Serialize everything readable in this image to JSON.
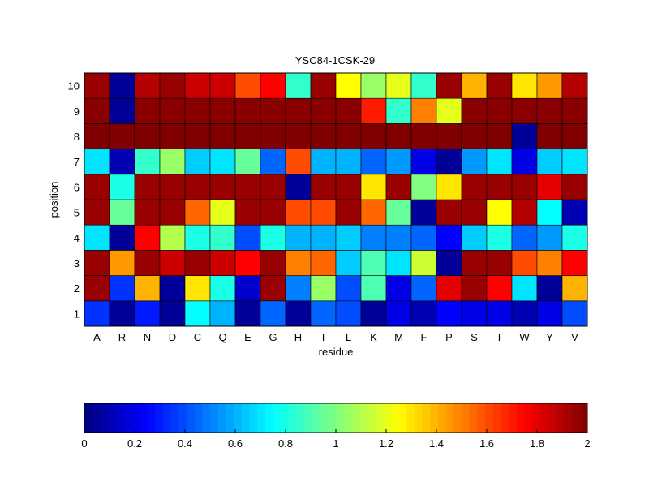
{
  "chart_data": {
    "type": "heatmap",
    "title": "YSC84-1CSK-29",
    "xlabel": "residue",
    "ylabel": "position",
    "x_categories": [
      "A",
      "R",
      "N",
      "D",
      "C",
      "Q",
      "E",
      "G",
      "H",
      "I",
      "L",
      "K",
      "M",
      "F",
      "P",
      "S",
      "T",
      "W",
      "Y",
      "V"
    ],
    "y_categories": [
      "1",
      "2",
      "3",
      "4",
      "5",
      "6",
      "7",
      "8",
      "9",
      "10"
    ],
    "values": [
      [
        0.35,
        0.05,
        0.3,
        0.05,
        0.75,
        0.6,
        0.05,
        0.45,
        0.05,
        0.45,
        0.4,
        0.05,
        0.2,
        0.1,
        0.25,
        0.2,
        0.2,
        0.1,
        0.2,
        0.4
      ],
      [
        1.95,
        0.35,
        1.4,
        0.05,
        1.3,
        0.8,
        0.15,
        1.95,
        0.5,
        1.05,
        0.4,
        0.9,
        0.2,
        0.45,
        1.8,
        1.95,
        1.75,
        0.7,
        0.05,
        1.4
      ],
      [
        1.95,
        1.45,
        1.95,
        1.85,
        1.95,
        1.85,
        1.75,
        1.95,
        1.5,
        1.55,
        0.65,
        0.9,
        0.7,
        1.15,
        0.05,
        1.95,
        1.95,
        1.6,
        1.5,
        1.75
      ],
      [
        0.7,
        0.05,
        1.75,
        1.1,
        0.8,
        0.85,
        0.4,
        0.8,
        0.6,
        0.6,
        0.65,
        0.5,
        0.5,
        0.45,
        0.25,
        0.65,
        0.8,
        0.45,
        0.55,
        0.8
      ],
      [
        1.95,
        0.95,
        1.95,
        1.95,
        1.55,
        1.2,
        1.95,
        1.95,
        1.6,
        1.6,
        1.95,
        1.55,
        0.95,
        0.05,
        1.95,
        1.95,
        1.25,
        1.9,
        0.75,
        0.1
      ],
      [
        1.95,
        0.8,
        1.95,
        1.95,
        1.95,
        1.95,
        1.95,
        1.95,
        0.05,
        1.95,
        1.95,
        1.3,
        1.95,
        1.0,
        1.3,
        1.95,
        1.95,
        1.95,
        1.8,
        1.95
      ],
      [
        0.7,
        0.1,
        0.85,
        1.05,
        0.65,
        0.7,
        0.95,
        0.45,
        1.6,
        0.6,
        0.6,
        0.45,
        0.55,
        0.2,
        0.05,
        0.55,
        0.7,
        0.2,
        0.65,
        0.7
      ],
      [
        2.0,
        2.0,
        2.0,
        2.0,
        2.0,
        2.0,
        2.0,
        2.0,
        2.0,
        2.0,
        2.0,
        2.0,
        2.0,
        2.0,
        2.0,
        2.0,
        2.0,
        0.05,
        2.0,
        2.0
      ],
      [
        1.98,
        0.05,
        1.98,
        1.98,
        1.98,
        1.98,
        1.98,
        1.98,
        1.98,
        1.98,
        1.98,
        1.7,
        0.85,
        1.5,
        1.2,
        1.98,
        1.98,
        1.98,
        1.98,
        1.98
      ],
      [
        1.95,
        0.05,
        1.9,
        1.95,
        1.85,
        1.85,
        1.6,
        1.75,
        0.85,
        1.95,
        1.25,
        1.05,
        1.2,
        0.85,
        1.95,
        1.4,
        1.95,
        1.3,
        1.45,
        1.9
      ]
    ],
    "zlim": [
      0,
      2
    ],
    "colormap": "jet",
    "colorbar": {
      "orientation": "horizontal",
      "ticks": [
        "0",
        "0.2",
        "0.4",
        "0.6",
        "0.8",
        "1",
        "1.2",
        "1.4",
        "1.6",
        "1.8",
        "2"
      ]
    },
    "grid": false
  }
}
